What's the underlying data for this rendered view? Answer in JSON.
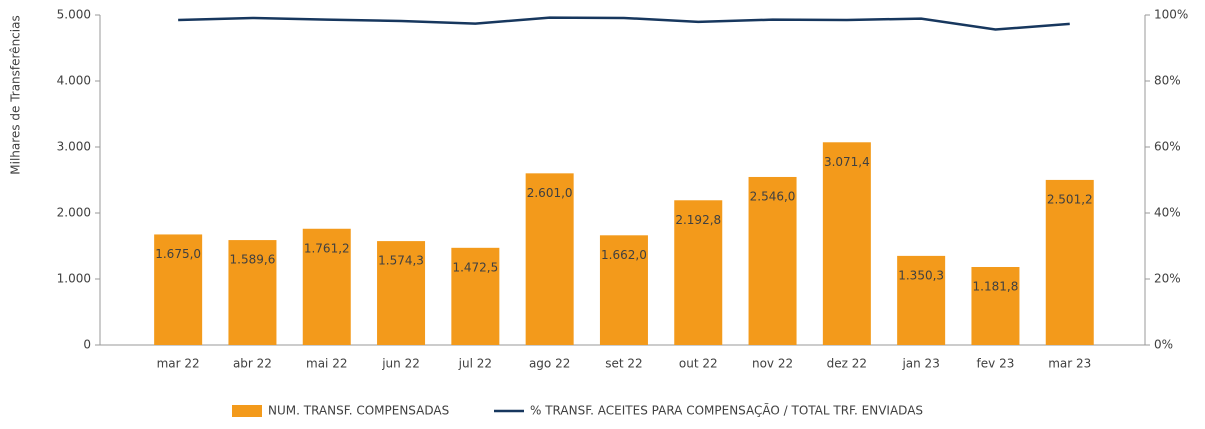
{
  "chart_data": {
    "type": "bar",
    "y_axis_label": "Milhares de Transferências",
    "categories": [
      "mar 22",
      "abr 22",
      "mai 22",
      "jun 22",
      "jul 22",
      "ago 22",
      "set 22",
      "out 22",
      "nov 22",
      "dez 22",
      "jan 23",
      "fev 23",
      "mar 23"
    ],
    "series": [
      {
        "name": "NUM. TRANSF. COMPENSADAS",
        "color": "#f39a1b",
        "values": [
          1675.0,
          1589.6,
          1761.2,
          1574.3,
          1472.5,
          2601.0,
          1662.0,
          2192.8,
          2546.0,
          3071.4,
          1350.3,
          1181.8,
          2501.2
        ],
        "value_labels": [
          "1.675,0",
          "1.589,6",
          "1.761,2",
          "1.574,3",
          "1.472,5",
          "2.601,0",
          "1.662,0",
          "2.192,8",
          "2.546,0",
          "3.071,4",
          "1.350,3",
          "1.181,8",
          "2.501,2"
        ]
      },
      {
        "name": "% TRANSF. ACEITES PARA COMPENSAÇÃO / TOTAL TRF. ENVIADAS",
        "color": "#17375e",
        "axis": "y2",
        "values": [
          98.5,
          99.1,
          98.6,
          98.2,
          97.4,
          99.2,
          99.1,
          97.9,
          98.6,
          98.5,
          98.9,
          95.6,
          97.3
        ]
      }
    ],
    "ylim": [
      0,
      5000
    ],
    "yticks": [
      0,
      {
        "value": 1000,
        "label": "1.000"
      },
      {
        "value": 2000,
        "label": "2.000"
      },
      {
        "value": 3000,
        "label": "3.000"
      },
      {
        "value": 4000,
        "label": "4.000"
      },
      {
        "value": 5000,
        "label": "5.000"
      }
    ],
    "y2lim": [
      0,
      100
    ],
    "y2ticks": [
      {
        "value": 0,
        "label": "0%"
      },
      {
        "value": 20,
        "label": "20%"
      },
      {
        "value": 40,
        "label": "40%"
      },
      {
        "value": 60,
        "label": "60%"
      },
      {
        "value": 80,
        "label": "80%"
      },
      {
        "value": 100,
        "label": "100%"
      }
    ],
    "legend": "bottom",
    "grid": false
  }
}
